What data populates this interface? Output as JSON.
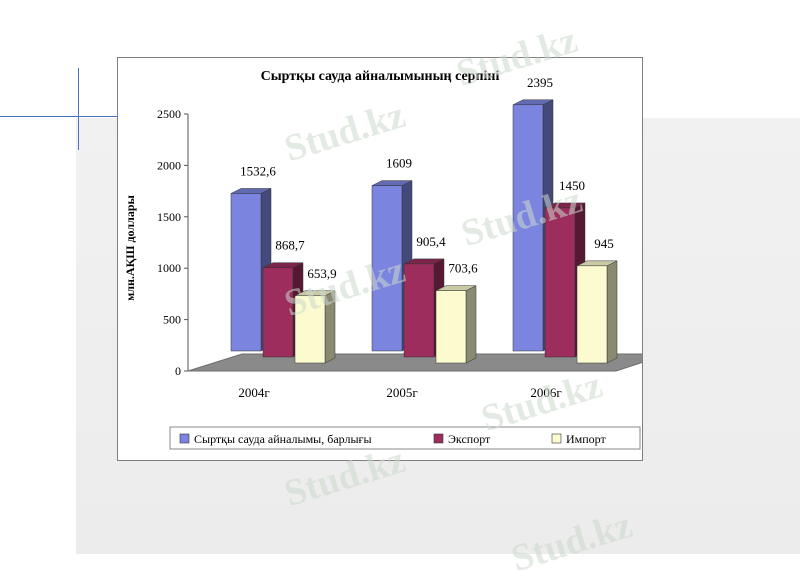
{
  "chart_data": {
    "type": "bar",
    "style": "3d-clustered",
    "title": "Сыртқы сауда айналымының серпіні",
    "ylabel": "млн.АҚШ доллары",
    "xlabel": "",
    "ylim": [
      0,
      2500
    ],
    "yticks": [
      0,
      500,
      1000,
      1500,
      2000,
      2500
    ],
    "categories": [
      "2004г",
      "2005г",
      "2006г"
    ],
    "series": [
      {
        "name": "Сыртқы сауда айналымы, барлығы",
        "values": [
          1532.6,
          1609,
          2395
        ],
        "labels": [
          "1532,6",
          "1609",
          "2395"
        ],
        "color": "#7b85e0"
      },
      {
        "name": "Экспорт",
        "values": [
          868.7,
          905.4,
          1450
        ],
        "labels": [
          "868,7",
          "905,4",
          "1450"
        ],
        "color": "#9c2d5c"
      },
      {
        "name": "Импорт",
        "values": [
          653.9,
          703.6,
          945
        ],
        "labels": [
          "653,9",
          "703,6",
          "945"
        ],
        "color": "#fbfbcf"
      }
    ],
    "grid": false,
    "legend_position": "bottom"
  },
  "watermark": {
    "text": "Stud.kz"
  }
}
